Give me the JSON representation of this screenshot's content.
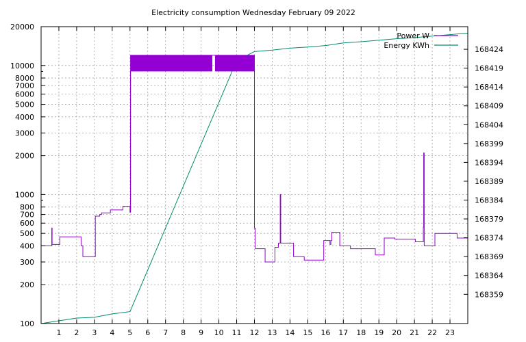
{
  "chart_data": {
    "type": "line",
    "title": "Electricity consumption Wednesday February 09 2022",
    "x_ticks": [
      "1",
      "2",
      "3",
      "4",
      "5",
      "6",
      "7",
      "8",
      "9",
      "10",
      "11",
      "12",
      "13",
      "14",
      "15",
      "16",
      "17",
      "18",
      "19",
      "20",
      "21",
      "22",
      "23"
    ],
    "xlim": [
      0,
      24
    ],
    "y_left": {
      "scale": "log",
      "lim": [
        100,
        20000
      ],
      "tick_values": [
        100,
        200,
        300,
        400,
        500,
        600,
        700,
        800,
        1000,
        2000,
        3000,
        4000,
        5000,
        6000,
        7000,
        8000,
        10000,
        20000
      ],
      "tick_labels": [
        "100",
        "200",
        "300",
        "400",
        "500",
        "600",
        "700",
        "800",
        "1000",
        "2000",
        "3000",
        "4000",
        "5000",
        "6000",
        "7000",
        "8000",
        "10000",
        "20000"
      ]
    },
    "y_right": {
      "scale": "linear",
      "lim": [
        168351.25,
        168430.0
      ],
      "tick_values": [
        168359,
        168364,
        168369,
        168374,
        168379,
        168384,
        168389,
        168394,
        168399,
        168404,
        168409,
        168414,
        168419,
        168424
      ],
      "tick_labels": [
        "168359",
        "168364",
        "168369",
        "168374",
        "168379",
        "168384",
        "168389",
        "168394",
        "168399",
        "168404",
        "168409",
        "168414",
        "168419",
        "168424"
      ]
    },
    "grid": true,
    "legend_position": "top-right",
    "series": [
      {
        "name": "Power W",
        "axis": "left",
        "color": "#9400d3",
        "x": [
          0,
          0.6,
          0.6,
          0.62,
          0.62,
          0.68,
          0.68,
          1.05,
          1.05,
          2.25,
          2.25,
          2.35,
          2.35,
          3.0,
          3.0,
          3.05,
          3.05,
          3.3,
          3.3,
          3.4,
          3.4,
          3.9,
          3.9,
          4.6,
          4.6,
          5.0,
          5.0,
          5.03,
          5.03,
          12.0,
          12.0,
          12.05,
          12.05,
          12.6,
          12.6,
          13.15,
          13.15,
          13.35,
          13.35,
          13.45,
          13.45,
          13.48,
          13.48,
          13.52,
          13.52,
          14.2,
          14.2,
          14.8,
          14.8,
          15.9,
          15.9,
          16.25,
          16.25,
          16.3,
          16.3,
          16.35,
          16.35,
          16.8,
          16.8,
          17.4,
          17.4,
          18.8,
          18.8,
          19.3,
          19.3,
          19.9,
          19.9,
          21.05,
          21.05,
          21.5,
          21.5,
          21.52,
          21.52,
          21.55,
          21.55,
          21.57,
          21.57,
          22.15,
          22.15,
          22.3,
          22.3,
          23.4,
          23.4,
          24.0
        ],
        "y": [
          400,
          400,
          550,
          550,
          410,
          410,
          410,
          410,
          470,
          470,
          400,
          400,
          330,
          330,
          330,
          330,
          680,
          680,
          700,
          700,
          720,
          720,
          760,
          760,
          810,
          810,
          730,
          730,
          12000,
          12000,
          550,
          550,
          380,
          380,
          300,
          300,
          390,
          390,
          420,
          420,
          1000,
          1000,
          420,
          420,
          420,
          420,
          330,
          330,
          310,
          310,
          440,
          440,
          410,
          410,
          440,
          440,
          510,
          510,
          400,
          400,
          380,
          380,
          340,
          340,
          460,
          460,
          450,
          450,
          430,
          430,
          560,
          560,
          2100,
          2100,
          400,
          400,
          400,
          400,
          500,
          500,
          500,
          500,
          460,
          460
        ]
      },
      {
        "name": "Energy KWh",
        "axis": "right",
        "color": "#008b6b",
        "x": [
          0,
          2.0,
          3.0,
          4.0,
          5.0,
          6.0,
          7.0,
          8.0,
          9.0,
          10.0,
          11.0,
          12.0,
          13.0,
          14.0,
          15.0,
          16.0,
          17.0,
          18.0,
          19.0,
          20.0,
          21.0,
          22.0,
          23.0,
          24.0
        ],
        "y": [
          168351.25,
          168352.7,
          168352.9,
          168353.8,
          168354.4,
          168365.5,
          168376.6,
          168387.7,
          168398.8,
          168409.9,
          168421.0,
          168423.4,
          168423.8,
          168424.3,
          168424.6,
          168425.0,
          168425.7,
          168426.0,
          168426.4,
          168426.8,
          168427.1,
          168427.5,
          168427.9,
          168428.3
        ]
      }
    ]
  }
}
